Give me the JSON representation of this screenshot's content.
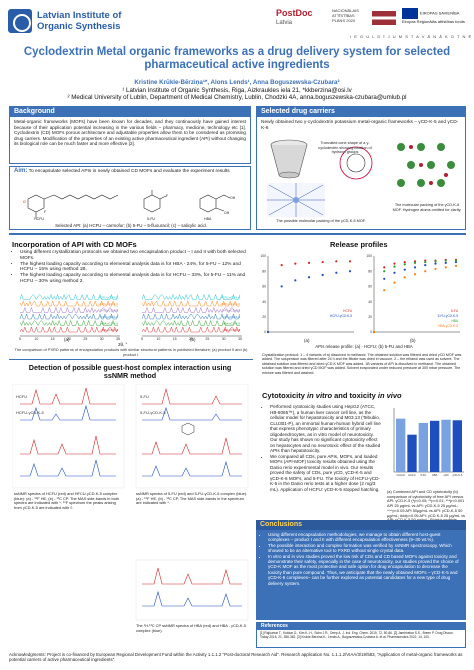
{
  "header": {
    "org_name_line1": "Latvian Institute of",
    "org_name_line2": "Organic Synthesis",
    "postdoc_line1": "PostDoc",
    "postdoc_line2": "Latvia",
    "nap_text": "NACIONĀLAIS ATTĪSTĪBAS PLĀNS 2020",
    "eu_text": "EIROPAS SAVIENĪBA Eiropas Reģionālās attīstības fonds",
    "invest_text": "I E G U L D Ī J U M S   T A V Ā   N Ā K O T N Ē"
  },
  "title": "Cyclodextrin Metal organic frameworks as a drug delivery system for selected pharmaceutical active ingredients",
  "authors": {
    "names": "Kristine Krūkle-Bērziņa¹*, Alons Lends¹, Anna Boguszewska-Czubara²",
    "affil1": "¹ Latvian Institute of Organic Synthesis, Riga, Aizkraukles iela 21, *kkberzina@osi.lv",
    "affil2": "² Medical University of Lublin, Department of Medical Chemistry, Lublin, Chodzki 4A, anna.boguszewska-czubara@umlub.pl"
  },
  "background": {
    "heading": "Background",
    "text": "Metal-organic frameworks (MOFs) have been known for decades, and they continuously have gained interest because of their application potential increasing in the various fields – pharmacy, medicine, technology etc [1]. Cyclodextrin (CD) MOFs porous architecture and adjustable properties allow them to be considered as promising drug carriers. Modification of the properties of an existing active pharmaceutical ingredient (API) without changing its biological role can be much faster and more effective [2]."
  },
  "aim": {
    "label": "Aim:",
    "text": "To encapsulate selected APIs in newly obtained CD MOFs and evaluate the experiment results",
    "labels": [
      "HCFU",
      "5-FU",
      "HBA"
    ],
    "caption": "Selected API: (a) HCFU – carmofur; (b) 5-FU – 5-fluouracil; (c) – salicylic acid."
  },
  "selected_carriers": {
    "heading": "Selected drug carriers",
    "text": "Newly obtained two γ-cyclodextrin potassium metal-organic frameworks – γCD-K-5 and γCD-K-6",
    "cd_caption": "Truncated cone shape of a γ-cyclodextrin showing location of hydroxyl groups",
    "packing_caption": "The possible molecular packing of the γCD-K-5 MOF.",
    "packing6_caption": "The molecular packing of the γCD-K-6 MOF. Hydrogen atoms omitted for clarity."
  },
  "incorporation": {
    "title": "Incorporation of API with CD MOFs",
    "bullets": [
      "Using different crystallization protocols we obtained two encapsulation product – I and II with both selected MOFs.",
      "The highest loading capacity according to elemental analysis data is for HBA - 24%, for 5-FU – 12% and HCFU – 15% using method 1B.",
      "The highest loading capacity according to elemental analysis data is for HCFU – 33%, for 5-FU – 11% and HCFU – 30% using method 2."
    ],
    "panel_a": "(a)",
    "panel_b": "(b)",
    "xlabel": "2θ, °",
    "caption": "The comparison of PXRD patterns of encapsulation products with similar structural patterns in published literature; (a) product II and (b) product I."
  },
  "release": {
    "title": "Release profiles",
    "panel_a": "(a)",
    "panel_b": "(b)",
    "caption": "APIs release profile: (a) - HCFU; (b) 5-FU and HBA",
    "notes": "Crystallization protocol: 1 – 4 variants of a) dissolved in methanol. The obtained solution was filtered and dried γCD MOF was added. The suspension was filtered after 24 h and the filtrate was dried in vacuum. 2 – the ethanol was used as solvent. The obtained solution was filtered and dried γCD-K MOF was added. 1B variants of API is dissolved in methanol. The obtained solution was filtered and dried γCD MOF was added. Solvent evaporated under reduced pressure at 300 mbar pressure. The mixture was filtered and washed."
  },
  "detection": {
    "title": "Detection of possible guest-host complex interaction using ssNMR method",
    "caption1": "ssNMR spectra of HCFU (red) and HFCU-γCD-K-5 complex (blue): (a) - ¹⁹F HE, (b) - ¹³C CP. The MAS side-bands in both spectra are indicated with *. ¹⁹F spectrum the peaks arising from γCD-K-5 are indicated with ◊.",
    "caption2": "ssNMR spectra of 5-FU (red) and 5-FU-γCD-K-5 complex (blue). (a) - ¹⁹F HE, (b) - ¹³C CP. The MAS side-bands in the spectrum are indicated with *.",
    "caption3": "The ¹H-¹³C CP ssNMR spectra of HBA (red) and HBA - γCD-K-5 complex (blue).",
    "labels": [
      "HCFU",
      "HCFU-γCD-K-5",
      "5-FU",
      "5-FU-γCD-K-5"
    ]
  },
  "cytotoxicity": {
    "title_part1": "Cytotoxicity",
    "title_part2": " in vitro ",
    "title_part3": "and toxicity",
    "title_part4": " in vivo",
    "bullets": [
      "Performed cytotoxicity studies using HepG2 (ATCC, HB-8065™), a human liver cancer cell line, as the cellular model for hepatotoxicity and M03.13 (Tebubio, CLU301-P), an immortal human-human hybrid cell line that express phenotypic characteristics of primary oligodendrocytes, as in vitro model of neurotoxicity. Our study has shown no significant cytotoxicity effect on hepatocytes and no neurotoxic effect of the studied APIs than hepatotoxicity.",
      "We compared all CDs, pure APIs, MOFs, and loaded MOFs (API-MOF) toxicity results obtained using the Danio rerio experimental model in vivo. Our results proved the safety of CDs, pure γCD, γCD-K-5 and γCD-K-6 MOFs, and 5-FU. The toxicity of HCFU-γCD-K-5 in the Danio rerio tests at a higher dose (2 mg/3 mL). Application of HCFU: γCD-K-5 stopped hatching."
    ],
    "caption": "(a) Combined API and CD cytotoxicity (b) comparison of cytotoxicity of free API versus API: γCD-K-5 (*p<0.05; **p<0.01; ***p<0.001 API 25 μg/mL vs API: γCD-K-5 25 μg/mL; ^^^p<0.05 API 50μg/mL vs API: γCD-K-5 50 μg/mL; ###p<0.05 API: γCD-K-5 25 μg/mL vs API: γCD-K-5 50 μg/mL; Sidak's multiple comparisons test."
  },
  "conclusions": {
    "heading": "Conclusions",
    "bullets": [
      "Using different encapsulation methodologies, we manage to obtain different host-guest complexes – product I and II with different encapsulation effectiveness (9–30 wt.%).",
      "The possible interaction and complex formation was verified by ssNMR spectroscopy. Which showed to be an alternative tool to PXRD without single crystal data.",
      "In vitro and in vivo studies proved the low risk of CDs and CD based MOFs against toxicity and demonstrate their safety, especially in the case of neurotoxicity, our studies proved the choice of γCD-K MOF as the most protective and safe option for drug encapsulation to decrease the toxicity than pure compound. Thus, we anticipate that the newly obtained MOFs – γCD-K-5 and γCD-K-6 complexes– can be further explored as potential candidates for a new type of drug delivery system."
    ]
  },
  "references": {
    "heading": "References",
    "items": "[1] Rajkumar T., Kukkar D., Kim K.-H., Sohn J.R., Deep A. J. Ind. Eng. Chem. 2019, 72, 50-66. [2] Jambhekar S.S., Breen P. Drug Discov. Today 2016, 21, 356-362. [3] Krukle-Berzina K., Lends A., Boguszewska-Czubara A. et al. Pharmaceutics 2022, 14, 100."
  },
  "acknowledgments": "Acknowledgments: Project is co-financed by European Regional Development Fund within the Activity 1.1.1.2 \"Post-doctoral Research Aid\". Research application No. 1.1.1.2/VIAA/3/19/583, \"Application of metal-organic frameworks as potential carriers of active pharmaceutical ingredients\".",
  "chart_data": [
    {
      "type": "line",
      "title": "",
      "panel": "(a)",
      "xlabel": "2θ, °",
      "ylabel": "",
      "series": [
        {
          "name": "HBA-γCD-K-6"
        },
        {
          "name": "HBA-γCD-K-5"
        },
        {
          "name": "5-FU-γCD-K-6"
        },
        {
          "name": "5-FU-γCD-K-5"
        },
        {
          "name": "HCFU-γCD-K-6"
        },
        {
          "name": "HCFU-γCD-K-5"
        }
      ],
      "x_ticks": [
        5,
        10,
        15,
        20,
        25,
        30,
        35
      ],
      "xlim": [
        5,
        35
      ]
    },
    {
      "type": "line",
      "title": "",
      "panel": "(b)",
      "xlabel": "2θ, °",
      "series": [
        {
          "name": "HBA-γCD-K-6"
        },
        {
          "name": "HBA-γCD-K-5"
        },
        {
          "name": "5-FU-γCD-K-6"
        },
        {
          "name": "5-FU-γCD-K-5"
        },
        {
          "name": "HCFU-γCD-K-6"
        },
        {
          "name": "HCFU-γCD-K-5"
        }
      ],
      "x_ticks": [
        5,
        10,
        15,
        20,
        25,
        30,
        35
      ],
      "xlim": [
        5,
        35
      ]
    },
    {
      "type": "scatter",
      "title": "",
      "panel": "(a)",
      "x": [
        0,
        20,
        40,
        60,
        80,
        100,
        120
      ],
      "series": [
        {
          "name": "HCFU",
          "values": [
            0,
            88,
            90,
            91,
            92,
            93,
            93
          ]
        },
        {
          "name": "HCFU-γCD-K-5",
          "values": [
            0,
            60,
            68,
            72,
            75,
            78,
            80
          ]
        }
      ],
      "ylim": [
        0,
        100
      ],
      "y_ticks": [
        0,
        20,
        40,
        60,
        80,
        100
      ]
    },
    {
      "type": "scatter",
      "title": "",
      "panel": "(b)",
      "x": [
        0,
        20,
        40,
        60,
        80,
        100,
        120,
        140,
        160
      ],
      "series": [
        {
          "name": "5-FU",
          "values": [
            0,
            85,
            90,
            92,
            93,
            94,
            94,
            95,
            95
          ]
        },
        {
          "name": "5-FU-γCD-K-5",
          "values": [
            0,
            70,
            78,
            82,
            85,
            88,
            90,
            91,
            92
          ]
        },
        {
          "name": "HBA",
          "values": [
            0,
            80,
            86,
            89,
            91,
            92,
            93,
            94,
            94
          ]
        },
        {
          "name": "HBA-γCD-K-5",
          "values": [
            0,
            55,
            65,
            72,
            76,
            80,
            83,
            85,
            87
          ]
        }
      ],
      "ylim": [
        0,
        100
      ],
      "y_ticks": [
        0,
        20,
        40,
        60,
        80,
        100
      ]
    },
    {
      "type": "bar",
      "title": "",
      "panel": "cytotoxicity",
      "categories": [
        "Control",
        "HCFU",
        "5-FU",
        "HBA",
        "γCD",
        "γCD-K-5"
      ],
      "values": [
        100,
        70,
        92,
        96,
        98,
        97
      ],
      "ylim": [
        0,
        120
      ]
    }
  ],
  "colors": {
    "accent": "#3c70b7",
    "conclusion_heading": "#ffd35a",
    "red_spectrum": "#d62728",
    "blue_spectrum": "#1f4fbf"
  }
}
